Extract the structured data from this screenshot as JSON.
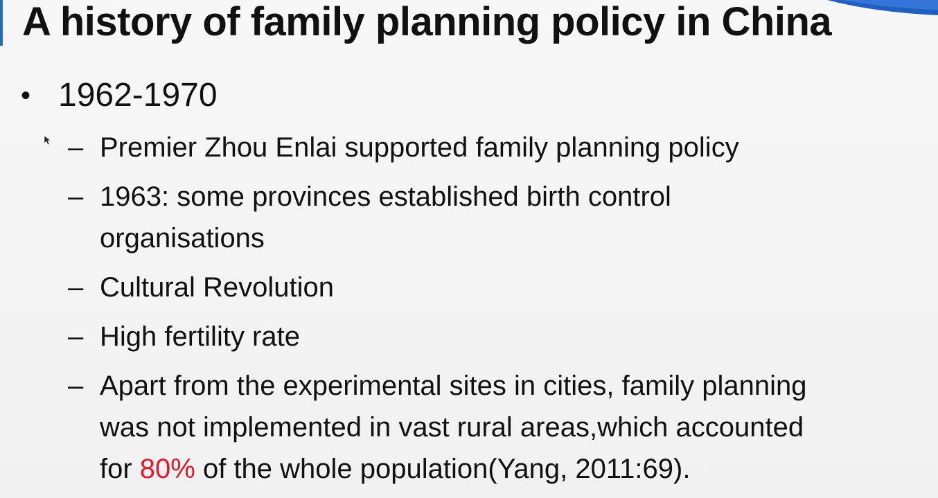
{
  "slide": {
    "title": "A history of family planning policy in China",
    "bullet_mark": "•",
    "dash_mark": "–",
    "level1": "1962-1970",
    "items": [
      {
        "text": "Premier Zhou Enlai supported family planning policy"
      },
      {
        "line1": "1963: some provinces established birth control",
        "line2": "organisations"
      },
      {
        "text": "Cultural Revolution"
      },
      {
        "text": "High fertility rate"
      },
      {
        "line1": "Apart from the experimental sites in cities, family planning",
        "line2": "was not implemented in vast rural areas,which accounted",
        "line3_pre": "for ",
        "line3_highlight": "80%",
        "line3_post": " of the whole population(Yang, 2011:69)."
      }
    ]
  },
  "colors": {
    "highlight": "#e0182a",
    "accent": "#2b6cb0"
  }
}
